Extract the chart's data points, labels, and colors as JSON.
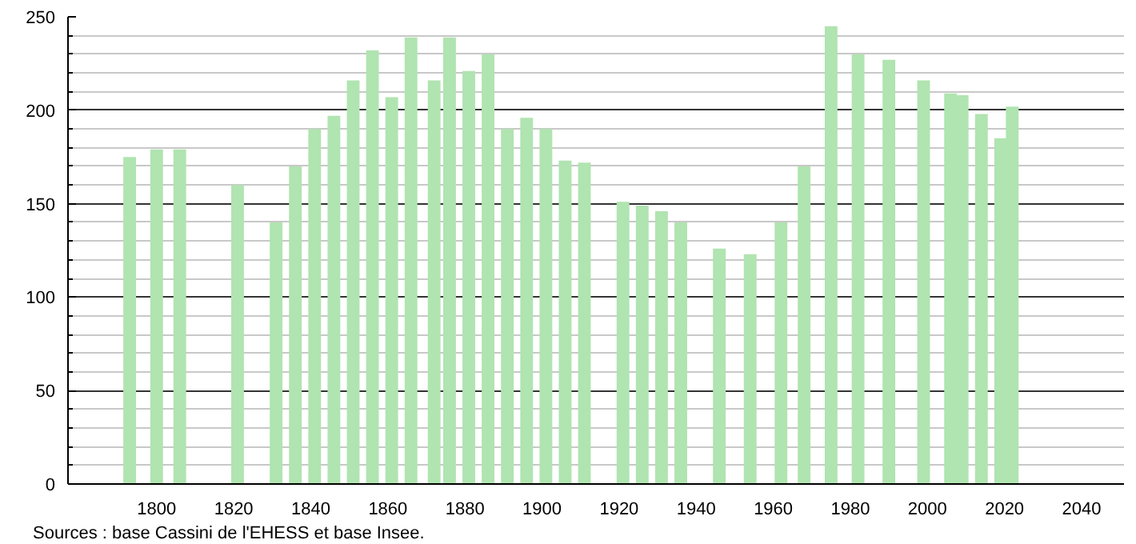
{
  "chart_data": {
    "type": "bar",
    "x": [
      1793,
      1800,
      1806,
      1821,
      1831,
      1836,
      1841,
      1846,
      1851,
      1856,
      1861,
      1866,
      1872,
      1876,
      1881,
      1886,
      1891,
      1896,
      1901,
      1906,
      1911,
      1921,
      1926,
      1931,
      1936,
      1946,
      1954,
      1962,
      1968,
      1975,
      1982,
      1990,
      1999,
      2006,
      2009,
      2014,
      2019,
      2022
    ],
    "values": [
      175,
      179,
      179,
      160,
      140,
      170,
      190,
      197,
      216,
      232,
      207,
      239,
      216,
      239,
      221,
      230,
      190,
      196,
      190,
      173,
      172,
      151,
      149,
      146,
      140,
      126,
      123,
      140,
      170,
      245,
      230,
      227,
      216,
      209,
      208,
      198,
      185,
      202
    ],
    "color": "#b0e4b0",
    "xlim": [
      1777,
      2051
    ],
    "xticks": [
      1800,
      1820,
      1840,
      1860,
      1880,
      1900,
      1920,
      1940,
      1960,
      1980,
      2000,
      2020,
      2040
    ],
    "ylim": [
      0,
      250
    ],
    "yticks": [
      0,
      50,
      100,
      150,
      200,
      250
    ],
    "grid": "y",
    "annotations": [
      "Sources : base Cassini de l'EHESS et base Insee."
    ]
  }
}
